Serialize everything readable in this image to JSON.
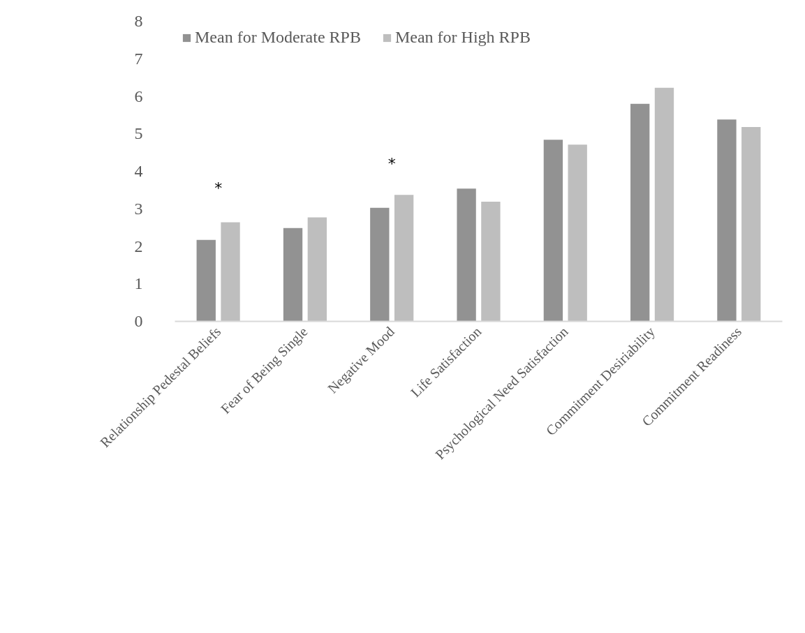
{
  "chart_data": {
    "type": "bar",
    "categories": [
      "Relationship Pedestal Beliefs",
      "Fear of Being Single",
      "Negative Mood",
      "Life Satisfaction",
      "Psychological Need Satisfaction",
      "Commitment Desiriability",
      "Commitment Readiness"
    ],
    "series": [
      {
        "name": "Mean for Moderate RPB",
        "color": "#929292",
        "values": [
          2.17,
          2.49,
          3.03,
          3.54,
          4.84,
          5.8,
          5.38
        ]
      },
      {
        "name": "Mean for High RPB",
        "color": "#bebebe",
        "values": [
          2.64,
          2.77,
          3.37,
          3.19,
          4.71,
          6.23,
          5.18
        ]
      }
    ],
    "annotations": [
      "*",
      "*"
    ],
    "ylim": [
      0,
      8
    ],
    "yticks": [
      0,
      1,
      2,
      3,
      4,
      5,
      6,
      7,
      8
    ],
    "grid": false,
    "legend": "top left"
  }
}
